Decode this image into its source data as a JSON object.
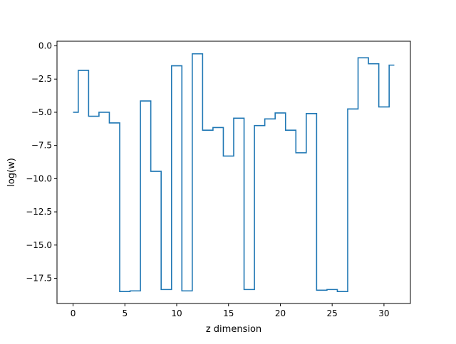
{
  "chart_data": {
    "type": "line",
    "drawstyle": "steps-mid",
    "title": "",
    "xlabel": "z dimension",
    "ylabel": "log(w)",
    "xlim": [
      -1.55,
      32.55
    ],
    "ylim": [
      -19.4,
      0.35
    ],
    "xticks": [
      0,
      5,
      10,
      15,
      20,
      25,
      30
    ],
    "xtick_labels": [
      "0",
      "5",
      "10",
      "15",
      "20",
      "25",
      "30"
    ],
    "yticks": [
      0,
      -2.5,
      -5,
      -7.5,
      -10,
      -12.5,
      -15,
      -17.5
    ],
    "ytick_labels": [
      "0.0",
      "−2.5",
      "−5.0",
      "−7.5",
      "−10.0",
      "−12.5",
      "−15.0",
      "−17.5"
    ],
    "grid": false,
    "series": [
      {
        "color": "#1f77b4",
        "x": [
          0,
          1,
          2,
          3,
          4,
          5,
          6,
          7,
          8,
          9,
          10,
          11,
          12,
          13,
          14,
          15,
          16,
          17,
          18,
          19,
          20,
          21,
          22,
          23,
          24,
          25,
          26,
          27,
          28,
          29,
          30,
          31
        ],
        "y": [
          -5.0,
          -1.85,
          -5.3,
          -5.0,
          -5.8,
          -18.5,
          -18.45,
          -4.15,
          -9.45,
          -18.35,
          -1.5,
          -18.45,
          -0.6,
          -6.35,
          -6.15,
          -8.3,
          -5.45,
          -18.35,
          -6.0,
          -5.5,
          -5.05,
          -6.35,
          -8.05,
          -5.1,
          -18.4,
          -18.35,
          -18.5,
          -4.75,
          -0.9,
          -1.35,
          -4.6,
          -1.45
        ]
      }
    ]
  }
}
